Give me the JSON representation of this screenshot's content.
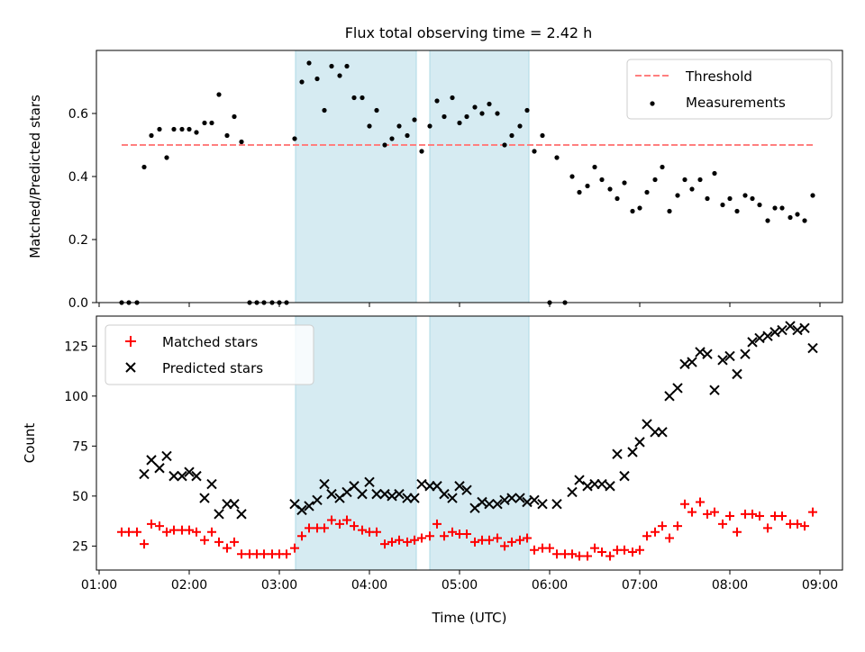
{
  "chart_data": [
    {
      "type": "scatter",
      "title": "Flux total observing time = 2.42 h",
      "ylabel": "Matched/Predicted stars",
      "xlabel": "",
      "x_unit": "hours UTC",
      "xlim": [
        0.97,
        9.25
      ],
      "ylim": [
        0,
        0.8
      ],
      "x_tick_labels": [
        "01:00",
        "02:00",
        "03:00",
        "04:00",
        "05:00",
        "06:00",
        "07:00",
        "08:00",
        "09:00"
      ],
      "y_ticks": [
        0.0,
        0.2,
        0.4,
        0.6
      ],
      "y_tick_labels": [
        "0.0",
        "0.2",
        "0.4",
        "0.6"
      ],
      "shaded_intervals": [
        [
          3.18,
          4.52
        ],
        [
          4.67,
          5.77
        ]
      ],
      "shade_color": "#add8e6",
      "series": [
        {
          "name": "Threshold",
          "style": "dashed-line",
          "color": "#ff7f7f",
          "x": [
            1.25,
            8.92
          ],
          "y": [
            0.5,
            0.5
          ]
        },
        {
          "name": "Measurements",
          "style": "dot",
          "color": "#000000",
          "x": [
            1.25,
            1.33,
            1.42,
            1.5,
            1.58,
            1.67,
            1.75,
            1.83,
            1.92,
            2.0,
            2.08,
            2.17,
            2.25,
            2.33,
            2.42,
            2.5,
            2.58,
            2.67,
            2.75,
            2.83,
            2.92,
            3.0,
            3.08,
            3.17,
            3.25,
            3.33,
            3.42,
            3.5,
            3.58,
            3.67,
            3.75,
            3.83,
            3.92,
            4.0,
            4.08,
            4.17,
            4.25,
            4.33,
            4.42,
            4.5,
            4.58,
            4.67,
            4.75,
            4.83,
            4.92,
            5.0,
            5.08,
            5.17,
            5.25,
            5.33,
            5.42,
            5.5,
            5.58,
            5.67,
            5.75,
            5.83,
            5.92,
            6.0,
            6.08,
            6.17,
            6.25,
            6.33,
            6.42,
            6.5,
            6.58,
            6.67,
            6.75,
            6.83,
            6.92,
            7.0,
            7.08,
            7.17,
            7.25,
            7.33,
            7.42,
            7.5,
            7.58,
            7.67,
            7.75,
            7.83,
            7.92,
            8.0,
            8.08,
            8.17,
            8.25,
            8.33,
            8.42,
            8.5,
            8.58,
            8.67,
            8.75,
            8.83,
            8.92
          ],
          "y": [
            0.0,
            0.0,
            0.0,
            0.43,
            0.53,
            0.55,
            0.46,
            0.55,
            0.55,
            0.55,
            0.54,
            0.57,
            0.57,
            0.66,
            0.53,
            0.59,
            0.51,
            0.0,
            0.0,
            0.0,
            0.0,
            0.0,
            0.0,
            0.52,
            0.7,
            0.76,
            0.71,
            0.61,
            0.75,
            0.72,
            0.75,
            0.65,
            0.65,
            0.56,
            0.61,
            0.5,
            0.52,
            0.56,
            0.53,
            0.58,
            0.48,
            0.56,
            0.64,
            0.59,
            0.65,
            0.57,
            0.59,
            0.62,
            0.6,
            0.63,
            0.6,
            0.5,
            0.53,
            0.56,
            0.61,
            0.48,
            0.53,
            0.0,
            0.46,
            0.0,
            0.4,
            0.35,
            0.37,
            0.43,
            0.39,
            0.36,
            0.33,
            0.38,
            0.29,
            0.3,
            0.35,
            0.39,
            0.43,
            0.29,
            0.34,
            0.39,
            0.36,
            0.39,
            0.33,
            0.41,
            0.31,
            0.33,
            0.29,
            0.34,
            0.33,
            0.31,
            0.26,
            0.3,
            0.3,
            0.27,
            0.28,
            0.26,
            0.34
          ]
        }
      ],
      "legend": {
        "position": "top-right",
        "entries": [
          "Threshold",
          "Measurements"
        ]
      }
    },
    {
      "type": "scatter",
      "title": "",
      "xlabel": "Time (UTC)",
      "ylabel": "Count",
      "x_unit": "hours UTC",
      "xlim": [
        0.97,
        9.25
      ],
      "ylim": [
        13,
        140
      ],
      "x_tick_labels": [
        "01:00",
        "02:00",
        "03:00",
        "04:00",
        "05:00",
        "06:00",
        "07:00",
        "08:00",
        "09:00"
      ],
      "y_ticks": [
        25,
        50,
        75,
        100,
        125
      ],
      "y_tick_labels": [
        "25",
        "50",
        "75",
        "100",
        "125"
      ],
      "shaded_intervals": [
        [
          3.18,
          4.52
        ],
        [
          4.67,
          5.77
        ]
      ],
      "shade_color": "#add8e6",
      "series": [
        {
          "name": "Matched stars",
          "style": "plus",
          "color": "#ff0000",
          "x": [
            1.25,
            1.33,
            1.42,
            1.5,
            1.58,
            1.67,
            1.75,
            1.83,
            1.92,
            2.0,
            2.08,
            2.17,
            2.25,
            2.33,
            2.42,
            2.5,
            2.58,
            2.67,
            2.75,
            2.83,
            2.92,
            3.0,
            3.08,
            3.17,
            3.25,
            3.33,
            3.42,
            3.5,
            3.58,
            3.67,
            3.75,
            3.83,
            3.92,
            4.0,
            4.08,
            4.17,
            4.25,
            4.33,
            4.42,
            4.5,
            4.58,
            4.67,
            4.75,
            4.83,
            4.92,
            5.0,
            5.08,
            5.17,
            5.25,
            5.33,
            5.42,
            5.5,
            5.58,
            5.67,
            5.75,
            5.83,
            5.92,
            6.0,
            6.08,
            6.17,
            6.25,
            6.33,
            6.42,
            6.5,
            6.58,
            6.67,
            6.75,
            6.83,
            6.92,
            7.0,
            7.08,
            7.17,
            7.25,
            7.33,
            7.42,
            7.5,
            7.58,
            7.67,
            7.75,
            7.83,
            7.92,
            8.0,
            8.08,
            8.17,
            8.25,
            8.33,
            8.42,
            8.5,
            8.58,
            8.67,
            8.75,
            8.83,
            8.92
          ],
          "y": [
            32,
            32,
            32,
            26,
            36,
            35,
            32,
            33,
            33,
            33,
            32,
            28,
            32,
            27,
            24,
            27,
            21,
            21,
            21,
            21,
            21,
            21,
            21,
            24,
            30,
            34,
            34,
            34,
            38,
            36,
            38,
            35,
            33,
            32,
            32,
            26,
            27,
            28,
            27,
            28,
            29,
            30,
            36,
            30,
            32,
            31,
            31,
            27,
            28,
            28,
            29,
            25,
            27,
            28,
            29,
            23,
            24,
            24,
            21,
            21,
            21,
            20,
            20,
            24,
            22,
            20,
            23,
            23,
            22,
            23,
            30,
            32,
            35,
            29,
            35,
            46,
            42,
            47,
            41,
            42,
            36,
            40,
            32,
            41,
            41,
            40,
            34,
            40,
            40,
            36,
            36,
            35,
            42
          ]
        },
        {
          "name": "Predicted stars",
          "style": "x",
          "color": "#000000",
          "x": [
            1.5,
            1.58,
            1.67,
            1.75,
            1.83,
            1.92,
            2.0,
            2.08,
            2.17,
            2.25,
            2.33,
            2.42,
            2.5,
            2.58,
            3.17,
            3.25,
            3.33,
            3.42,
            3.5,
            3.58,
            3.67,
            3.75,
            3.83,
            3.92,
            4.0,
            4.08,
            4.17,
            4.25,
            4.33,
            4.42,
            4.5,
            4.58,
            4.67,
            4.75,
            4.83,
            4.92,
            5.0,
            5.08,
            5.17,
            5.25,
            5.33,
            5.42,
            5.5,
            5.58,
            5.67,
            5.75,
            5.83,
            5.92,
            6.08,
            6.25,
            6.33,
            6.42,
            6.5,
            6.58,
            6.67,
            6.75,
            6.83,
            6.92,
            7.0,
            7.08,
            7.17,
            7.25,
            7.33,
            7.42,
            7.5,
            7.58,
            7.67,
            7.75,
            7.83,
            7.92,
            8.0,
            8.08,
            8.17,
            8.25,
            8.33,
            8.42,
            8.5,
            8.58,
            8.67,
            8.75,
            8.83,
            8.92
          ],
          "y": [
            61,
            68,
            64,
            70,
            60,
            60,
            62,
            60,
            49,
            56,
            41,
            46,
            46,
            41,
            46,
            43,
            45,
            48,
            56,
            51,
            49,
            52,
            55,
            51,
            57,
            51,
            51,
            50,
            51,
            49,
            49,
            56,
            55,
            55,
            51,
            49,
            55,
            53,
            44,
            47,
            46,
            46,
            48,
            49,
            49,
            47,
            48,
            46,
            46,
            52,
            58,
            55,
            56,
            56,
            55,
            71,
            60,
            72,
            77,
            86,
            82,
            82,
            100,
            104,
            116,
            117,
            122,
            121,
            103,
            118,
            120,
            111,
            121,
            127,
            129,
            130,
            132,
            133,
            135,
            133,
            134,
            124
          ]
        }
      ],
      "legend": {
        "position": "top-left",
        "entries": [
          "Matched stars",
          "Predicted stars"
        ]
      }
    }
  ]
}
